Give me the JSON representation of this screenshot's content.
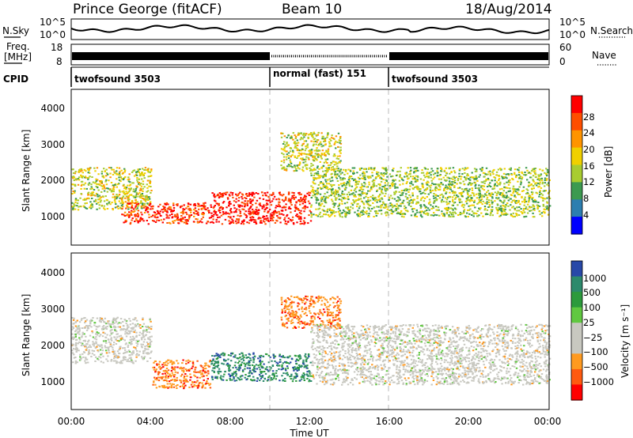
{
  "header": {
    "station": "Prince George (fitACF)",
    "beam": "Beam 10",
    "date": "18/Aug/2014"
  },
  "top_panels": {
    "nsky_label": "N.Sky",
    "nsearch_label": "N.Search",
    "nsky_ticks": [
      "10^5",
      "10^0"
    ],
    "freq_label_line1": "Freq.",
    "freq_label_line2": "[MHz]",
    "freq_ticks": [
      "18",
      "8"
    ],
    "nave_label": "Nave",
    "nave_ticks": [
      "60",
      "0"
    ],
    "cpid_label": "CPID",
    "cpid_segments": [
      {
        "label": "twofsound 3503",
        "start_hour": 0,
        "end_hour": 10
      },
      {
        "label": "normal (fast) 151",
        "start_hour": 10,
        "end_hour": 16
      },
      {
        "label": "twofsound 3503",
        "start_hour": 16,
        "end_hour": 24
      }
    ]
  },
  "chart_data": [
    {
      "type": "heatmap",
      "name": "power",
      "ylabel": "Slant Range [km]",
      "ylim": [
        180,
        4600
      ],
      "yticks": [
        1000,
        2000,
        3000,
        4000
      ],
      "xlim_hours": [
        0,
        24
      ],
      "colorbar_label": "Power [dB]",
      "colorbar_ticks": [
        "28",
        "24",
        "20",
        "16",
        "12",
        "8",
        "4"
      ],
      "colorbar_colors": [
        "#ff0000",
        "#ff4e00",
        "#ff9400",
        "#f0d000",
        "#a8cc30",
        "#3c9a50",
        "#2c7eb0",
        "#0000ff"
      ],
      "features": [
        {
          "hours": [
            0,
            4
          ],
          "range_km": [
            1200,
            2400
          ],
          "level_db": 14
        },
        {
          "hours": [
            2.5,
            7
          ],
          "range_km": [
            800,
            1400
          ],
          "level_db": 26
        },
        {
          "hours": [
            7,
            12
          ],
          "range_km": [
            800,
            1700
          ],
          "level_db": 28
        },
        {
          "hours": [
            10.5,
            13.5
          ],
          "range_km": [
            2300,
            3400
          ],
          "level_db": 14
        },
        {
          "hours": [
            12,
            24
          ],
          "range_km": [
            1000,
            2400
          ],
          "level_db": 12
        }
      ]
    },
    {
      "type": "heatmap",
      "name": "velocity",
      "ylabel": "Slant Range [km]",
      "ylim": [
        180,
        4600
      ],
      "yticks": [
        1000,
        2000,
        3000,
        4000
      ],
      "xlim_hours": [
        0,
        24
      ],
      "xticks": [
        "00:00",
        "04:00",
        "08:00",
        "12:00",
        "16:00",
        "20:00",
        "00:00"
      ],
      "xlabel": "Time UT",
      "colorbar_label": "Velocity [m s⁻¹]",
      "colorbar_ticks": [
        "1000",
        "500",
        "100",
        "25",
        "−25",
        "−100",
        "−500",
        "−1000"
      ],
      "colorbar_colors": [
        "#2848a8",
        "#2c8a6c",
        "#2c9a3c",
        "#60c840",
        "#c8c8c0",
        "#c8c8c0",
        "#ff9a20",
        "#ff5a10",
        "#ff0000"
      ],
      "features": [
        {
          "hours": [
            0,
            4
          ],
          "range_km": [
            1500,
            2800
          ],
          "velocity": 0
        },
        {
          "hours": [
            4,
            7
          ],
          "range_km": [
            800,
            1600
          ],
          "velocity": -300
        },
        {
          "hours": [
            7,
            12
          ],
          "range_km": [
            1000,
            1800
          ],
          "velocity": 150
        },
        {
          "hours": [
            10.5,
            13.5
          ],
          "range_km": [
            2500,
            3400
          ],
          "velocity": -200
        },
        {
          "hours": [
            12,
            24
          ],
          "range_km": [
            900,
            2600
          ],
          "velocity": 0
        }
      ]
    }
  ]
}
